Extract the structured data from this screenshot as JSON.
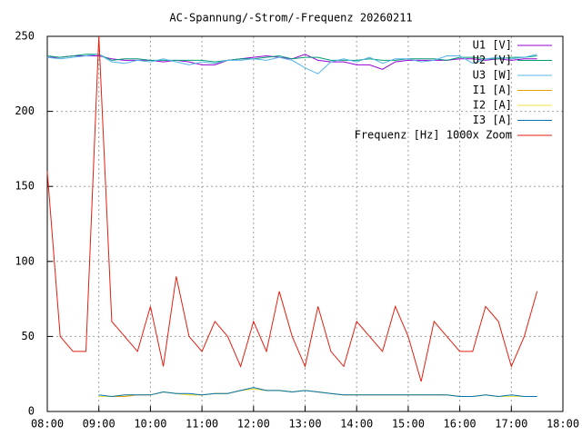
{
  "chart_data": {
    "type": "line",
    "title": "AC-Spannung/-Strom/-Frequenz 20260211",
    "x": [
      8,
      8.25,
      8.5,
      8.75,
      9,
      9.25,
      9.5,
      9.75,
      10,
      10.25,
      10.5,
      10.75,
      11,
      11.25,
      11.5,
      11.75,
      12,
      12.25,
      12.5,
      12.75,
      13,
      13.25,
      13.5,
      13.75,
      14,
      14.25,
      14.5,
      14.75,
      15,
      15.25,
      15.5,
      15.75,
      16,
      16.25,
      16.5,
      16.75,
      17,
      17.25,
      17.5
    ],
    "series": [
      {
        "name": "U1 [V]",
        "color": "#9400d3",
        "values": [
          236,
          236,
          237,
          237,
          237,
          235,
          234,
          234,
          234,
          233,
          234,
          233,
          231,
          231,
          234,
          235,
          236,
          237,
          236,
          235,
          238,
          234,
          233,
          233,
          231,
          231,
          228,
          233,
          234,
          234,
          234,
          234,
          235,
          235,
          234,
          235,
          234,
          235,
          235
        ]
      },
      {
        "name": "U2 [V]",
        "color": "#009e73",
        "values": [
          237,
          236,
          237,
          238,
          238,
          234,
          235,
          235,
          234,
          234,
          234,
          234,
          234,
          233,
          234,
          235,
          235,
          236,
          237,
          235,
          236,
          236,
          234,
          234,
          234,
          235,
          234,
          234,
          235,
          235,
          235,
          234,
          236,
          236,
          235,
          235,
          236,
          236,
          237
        ]
      },
      {
        "name": "U3 [W]",
        "color": "#56b4e9",
        "values": [
          236,
          235,
          236,
          237,
          238,
          233,
          232,
          234,
          233,
          235,
          233,
          231,
          233,
          232,
          234,
          234,
          235,
          234,
          236,
          234,
          229,
          225,
          233,
          235,
          233,
          236,
          232,
          235,
          235,
          233,
          234,
          237,
          237,
          232,
          235,
          236,
          235,
          236,
          238
        ]
      },
      {
        "name": "I1 [A]",
        "color": "#e69f00",
        "values": [
          null,
          null,
          null,
          null,
          10,
          10,
          10,
          11,
          11,
          13,
          12,
          11,
          11,
          12,
          12,
          14,
          15,
          14,
          14,
          13,
          14,
          13,
          12,
          11,
          11,
          11,
          11,
          11,
          11,
          11,
          11,
          11,
          10,
          10,
          11,
          10,
          10,
          10,
          10
        ]
      },
      {
        "name": "I2 [A]",
        "color": "#f0e442",
        "values": [
          null,
          null,
          null,
          null,
          10,
          10,
          11,
          11,
          11,
          13,
          12,
          11,
          11,
          12,
          12,
          14,
          15,
          14,
          14,
          13,
          14,
          13,
          12,
          11,
          11,
          11,
          11,
          11,
          11,
          11,
          11,
          11,
          10,
          10,
          11,
          10,
          10,
          10,
          10
        ]
      },
      {
        "name": "I3 [A]",
        "color": "#0072b2",
        "values": [
          null,
          null,
          null,
          null,
          11,
          10,
          11,
          11,
          11,
          13,
          12,
          12,
          11,
          12,
          12,
          14,
          16,
          14,
          14,
          13,
          14,
          13,
          12,
          11,
          11,
          11,
          11,
          11,
          11,
          11,
          11,
          11,
          10,
          10,
          11,
          10,
          11,
          10,
          10
        ]
      },
      {
        "name": "Frequenz [Hz] 1000x Zoom",
        "color": "#e51e10",
        "values": [
          160,
          50,
          40,
          40,
          250,
          60,
          50,
          40,
          70,
          30,
          90,
          50,
          40,
          60,
          50,
          30,
          60,
          40,
          80,
          50,
          30,
          70,
          40,
          30,
          60,
          50,
          40,
          70,
          50,
          20,
          60,
          50,
          40,
          40,
          70,
          60,
          30,
          50,
          80
        ]
      }
    ],
    "xlim": [
      8,
      18
    ],
    "xticks": [
      {
        "value": 8,
        "label": "08:00"
      },
      {
        "value": 9,
        "label": "09:00"
      },
      {
        "value": 10,
        "label": "10:00"
      },
      {
        "value": 11,
        "label": "11:00"
      },
      {
        "value": 12,
        "label": "12:00"
      },
      {
        "value": 13,
        "label": "13:00"
      },
      {
        "value": 14,
        "label": "14:00"
      },
      {
        "value": 15,
        "label": "15:00"
      },
      {
        "value": 16,
        "label": "16:00"
      },
      {
        "value": 17,
        "label": "17:00"
      },
      {
        "value": 18,
        "label": "18:00"
      }
    ],
    "ylim": [
      0,
      250
    ],
    "yticks": [
      0,
      50,
      100,
      150,
      200,
      250
    ],
    "grid": true,
    "legend": "top-right"
  }
}
